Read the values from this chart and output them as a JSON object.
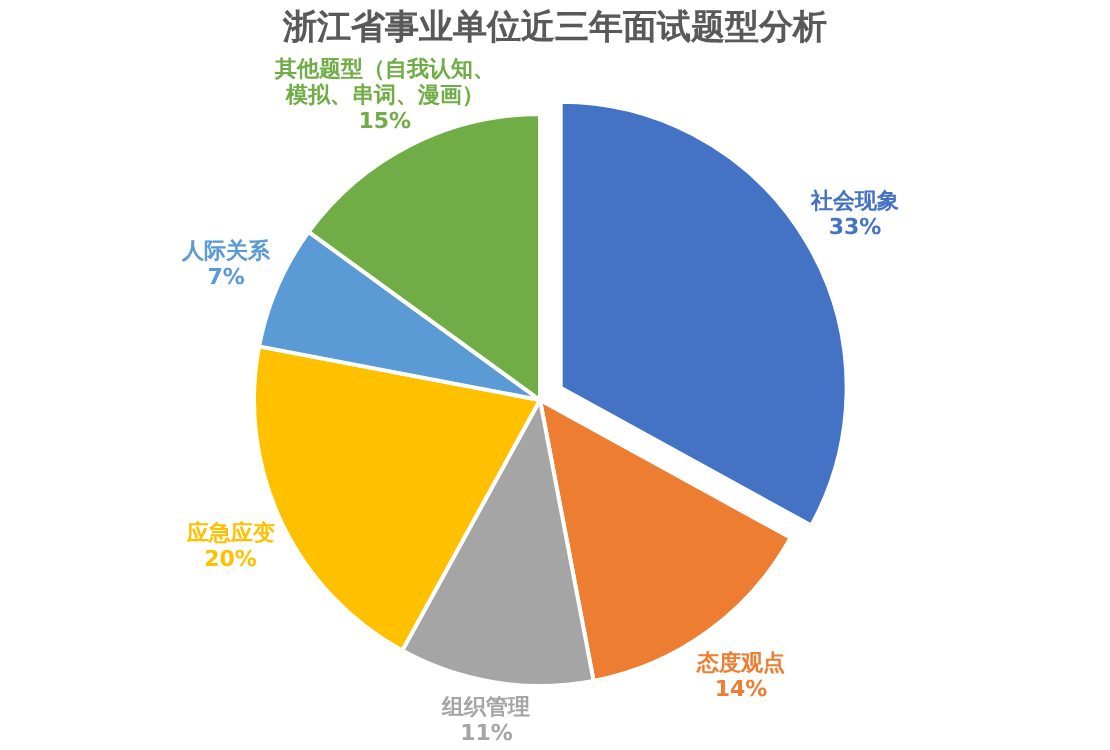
{
  "chart_data": {
    "type": "pie",
    "title": "浙江省事业单位近三年面试题型分析",
    "categories": [
      "社会现象",
      "态度观点",
      "组织管理",
      "应急应变",
      "人际关系",
      "其他题型（自我认知、模拟、串词、漫画）"
    ],
    "values": [
      33,
      14,
      11,
      20,
      7,
      15
    ],
    "colors": [
      "#4472c4",
      "#ed7d31",
      "#a5a5a5",
      "#ffc000",
      "#5b9bd5",
      "#70ad47"
    ],
    "value_labels": [
      "33%",
      "14%",
      "11%",
      "20%",
      "7%",
      "15%"
    ]
  }
}
